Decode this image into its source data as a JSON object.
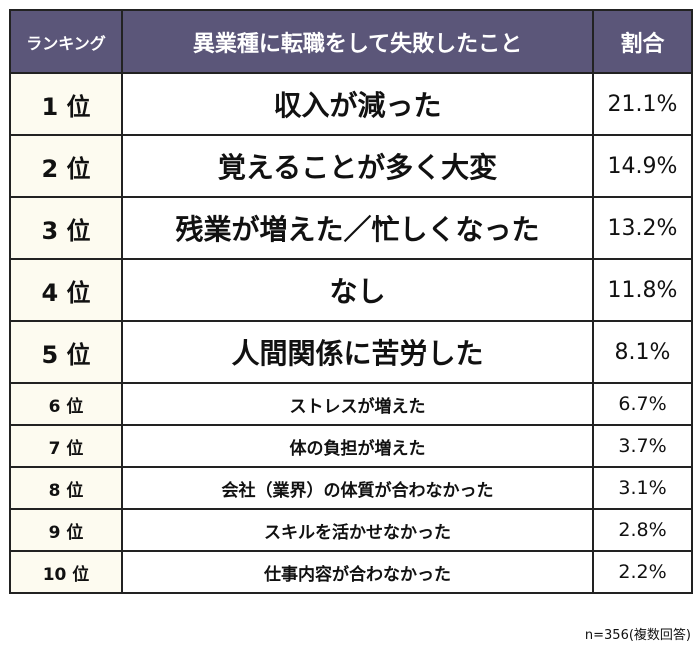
{
  "headers": {
    "rank": "ランキング",
    "item": "異業種に転職をして失敗したこと",
    "pct": "割合"
  },
  "rows": [
    {
      "rank": "1 位",
      "item": "収入が減った",
      "pct": "21.1%"
    },
    {
      "rank": "2 位",
      "item": "覚えることが多く大変",
      "pct": "14.9%"
    },
    {
      "rank": "3 位",
      "item": "残業が増えた／忙しくなった",
      "pct": "13.2%"
    },
    {
      "rank": "4 位",
      "item": "なし",
      "pct": "11.8%"
    },
    {
      "rank": "5 位",
      "item": "人間関係に苦労した",
      "pct": "8.1%"
    },
    {
      "rank": "6 位",
      "item": "ストレスが増えた",
      "pct": "6.7%"
    },
    {
      "rank": "7 位",
      "item": "体の負担が増えた",
      "pct": "3.7%"
    },
    {
      "rank": "8 位",
      "item": "会社（業界）の体質が合わなかった",
      "pct": "3.1%"
    },
    {
      "rank": "9 位",
      "item": "スキルを活かせなかった",
      "pct": "2.8%"
    },
    {
      "rank": "10 位",
      "item": "仕事内容が合わなかった",
      "pct": "2.2%"
    }
  ],
  "footnote": "n=356(複数回答)",
  "colors": {
    "header_bg": "#5b5679",
    "rank_bg": "#fdfbf0",
    "border": "#222222"
  }
}
